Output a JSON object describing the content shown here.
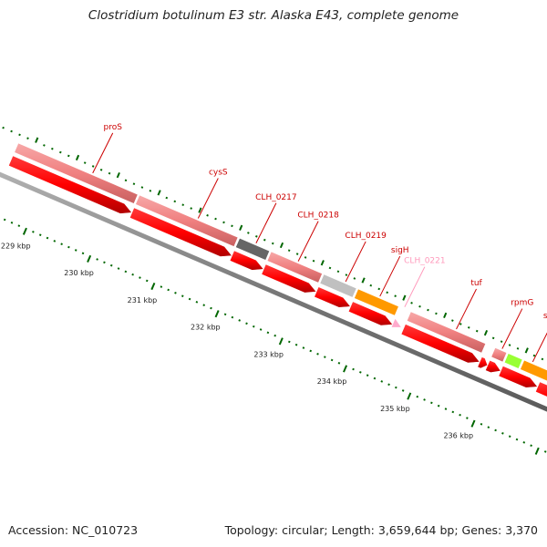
{
  "title": "Clostridium botulinum E3 str. Alaska E43, complete genome",
  "accession": "Accession: NC_010723",
  "topology": "Topology: circular; Length: 3,659,644 bp; Genes: 3,370",
  "colors": {
    "gene_pink": "#f08080",
    "cds_red": "#ff0000",
    "dark_gray": "#666666",
    "light_gray": "#c0c0c0",
    "orange": "#ff9900",
    "lime": "#99ff33",
    "light_pink": "#ffaacc",
    "label_red": "#cc0000",
    "label_pink": "#ff99bb",
    "tick_green": "#006600",
    "backbone": "#777777"
  },
  "kbp_labels": [
    "229 kbp",
    "230 kbp",
    "231 kbp",
    "232 kbp",
    "233 kbp",
    "234 kbp",
    "235 kbp",
    "236 kbp"
  ],
  "genes": [
    {
      "label": "proS",
      "start": 0.0,
      "end": 0.23,
      "color": "gene_pink",
      "label_color": "label_red",
      "label_t": 0.14
    },
    {
      "label": "cysS",
      "start": 0.23,
      "end": 0.42,
      "color": "gene_pink",
      "label_color": "label_red",
      "label_t": 0.34
    },
    {
      "label": "CLH_0217",
      "start": 0.42,
      "end": 0.48,
      "color": "dark_gray",
      "label_color": "label_red",
      "label_t": 0.45
    },
    {
      "label": "CLH_0218",
      "start": 0.48,
      "end": 0.58,
      "color": "gene_pink",
      "label_color": "label_red",
      "label_t": 0.53
    },
    {
      "label": "CLH_0219",
      "start": 0.58,
      "end": 0.645,
      "color": "light_gray",
      "label_color": "label_red",
      "label_t": 0.62
    },
    {
      "label": "sigH",
      "start": 0.645,
      "end": 0.725,
      "color": "orange",
      "label_color": "label_red",
      "label_t": 0.685
    },
    {
      "label": "CLH_0221",
      "start": 0.725,
      "end": 0.74,
      "color": "light_pink",
      "label_color": "label_pink",
      "label_t": 0.732
    },
    {
      "label": "tuf",
      "start": 0.745,
      "end": 0.89,
      "color": "gene_pink",
      "label_color": "label_red",
      "label_t": 0.83
    },
    {
      "label": "rpmG",
      "start": 0.905,
      "end": 0.93,
      "color": "gene_pink",
      "label_color": "label_red",
      "label_t": 0.917
    },
    {
      "label": "",
      "start": 0.93,
      "end": 0.96,
      "color": "lime",
      "label_color": "label_red",
      "label_t": 0.945
    },
    {
      "label": "secE",
      "start": 0.96,
      "end": 1.03,
      "color": "orange",
      "label_color": "label_red",
      "label_t": 0.975
    },
    {
      "label": "",
      "start": 1.03,
      "end": 1.1,
      "color": "gene_pink",
      "label_color": "label_red",
      "label_t": 1.06
    }
  ],
  "cds": [
    {
      "start": 0.0,
      "end": 0.23
    },
    {
      "start": 0.23,
      "end": 0.42
    },
    {
      "start": 0.42,
      "end": 0.48
    },
    {
      "start": 0.48,
      "end": 0.58
    },
    {
      "start": 0.58,
      "end": 0.645
    },
    {
      "start": 0.645,
      "end": 0.725
    },
    {
      "start": 0.745,
      "end": 0.89
    },
    {
      "start": 0.89,
      "end": 0.905
    },
    {
      "start": 0.905,
      "end": 0.93
    },
    {
      "start": 0.93,
      "end": 1.0
    },
    {
      "start": 1.0,
      "end": 1.1
    }
  ]
}
